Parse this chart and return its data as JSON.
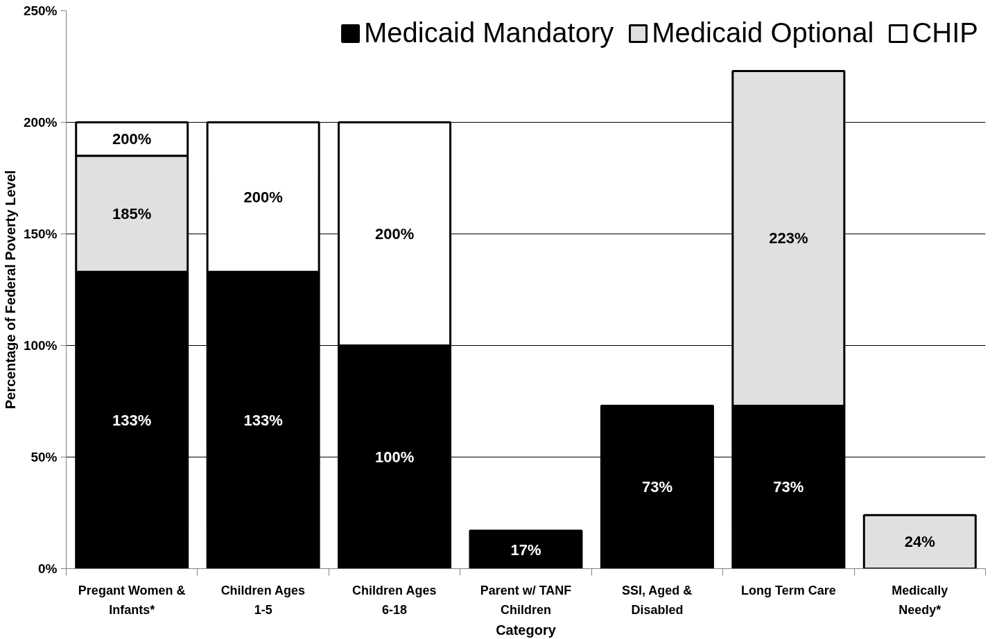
{
  "chart_data": {
    "type": "bar",
    "stacked": true,
    "xlabel": "Category",
    "ylabel": "Percentage of Federal Poverty Level",
    "categories": [
      "Pregant Women & Infants*",
      "Children Ages 1-5",
      "Children Ages 6-18",
      "Parent w/ TANF Children",
      "SSI, Aged & Disabled",
      "Long Term Care",
      "Medically Needy*"
    ],
    "series": [
      {
        "name": "Medicaid Mandatory",
        "color": "#000000",
        "values": [
          133,
          133,
          100,
          17,
          73,
          73,
          null
        ],
        "value_labels": [
          "133%",
          "133%",
          "100%",
          "17%",
          "73%",
          "73%",
          null
        ]
      },
      {
        "name": "Medicaid Optional",
        "color": "#e0e0e0",
        "values": [
          52,
          null,
          null,
          null,
          null,
          150,
          24
        ],
        "value_labels": [
          null,
          null,
          null,
          null,
          null,
          null,
          "24%"
        ]
      },
      {
        "name": "CHIP",
        "color": "#ffffff",
        "values": [
          15,
          67,
          100,
          null,
          null,
          null,
          null
        ]
      }
    ],
    "totals": [
      "200%",
      "200%",
      "200%",
      null,
      null,
      "223%",
      null
    ],
    "annotations": [
      "185%"
    ],
    "ylim": [
      0,
      250
    ],
    "yticks": [
      {
        "value": 0,
        "label": "0%"
      },
      {
        "value": 50,
        "label": "50%"
      },
      {
        "value": 100,
        "label": "100%"
      },
      {
        "value": 150,
        "label": "150%"
      },
      {
        "value": 200,
        "label": "200%"
      },
      {
        "value": 250,
        "label": "250%"
      }
    ],
    "grid": "y",
    "legend": "top right"
  }
}
